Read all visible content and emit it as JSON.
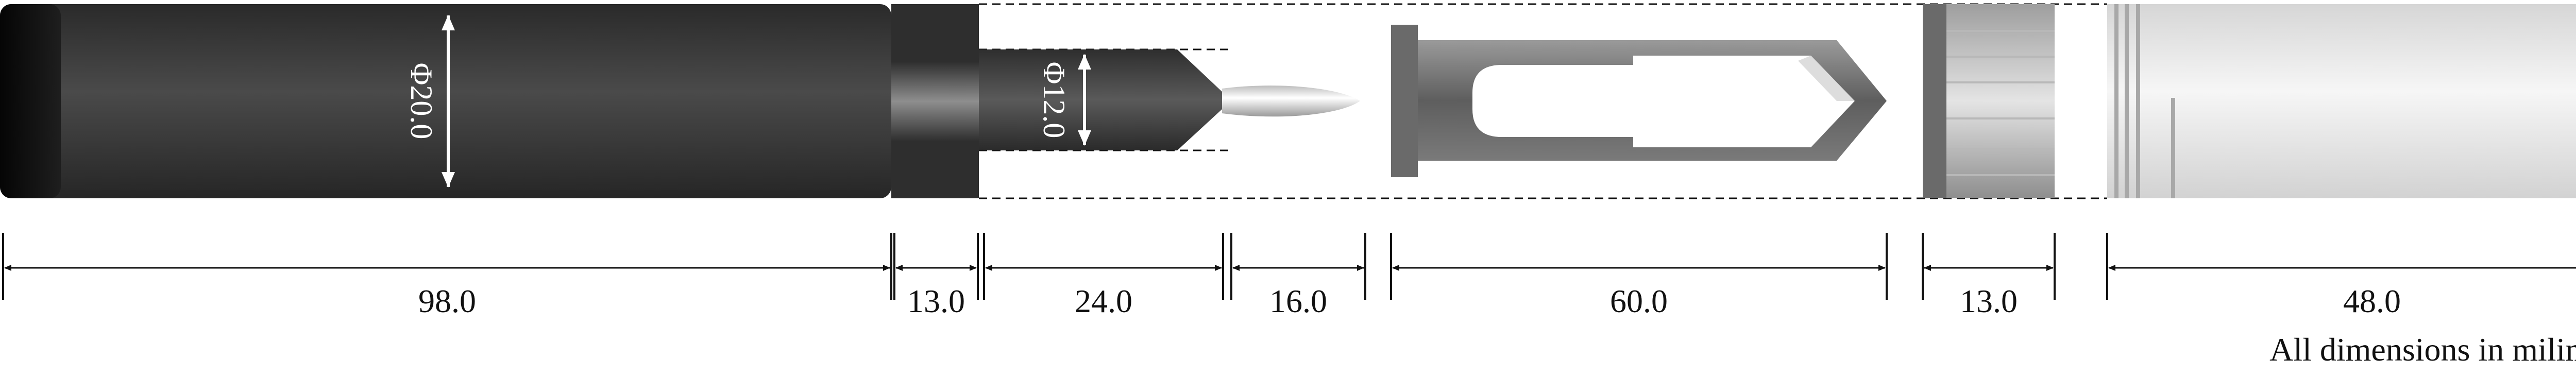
{
  "diagram": {
    "parts": [
      {
        "id": "body-tube",
        "length": "98.0",
        "diameter": "Φ20.0"
      },
      {
        "id": "collar",
        "length": "13.0"
      },
      {
        "id": "cone-section",
        "length": "24.0",
        "diameter": "Φ12.0"
      },
      {
        "id": "tip",
        "length": "16.0"
      },
      {
        "id": "clip-frame",
        "length": "60.0"
      },
      {
        "id": "cap-ring",
        "length": "13.0"
      },
      {
        "id": "cap-sleeve",
        "length": "48.0"
      }
    ],
    "note": "All dimensions in milimeter"
  },
  "colors": {
    "body_dark": "#3b3b3b",
    "frame_gray": "#6e6e6e",
    "sleeve_light": "#e6e6e6",
    "dim_line": "#111111"
  }
}
